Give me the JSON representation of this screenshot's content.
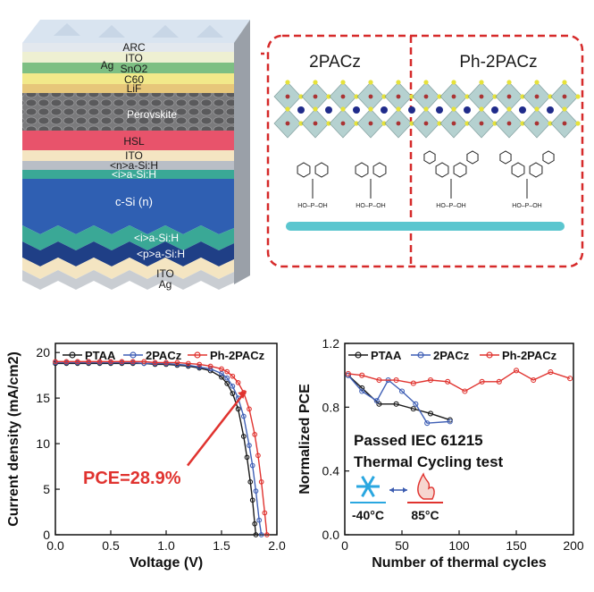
{
  "stack": {
    "layers": [
      "ARC",
      "ITO",
      "SnO2",
      "C60",
      "LiF",
      "Perovskite",
      "HSL",
      "ITO",
      "<n>a-Si:H",
      "<i>a-Si:H",
      "c-Si (n)",
      "<i>a-Si:H",
      "<p>a-Si:H",
      "ITO",
      "Ag"
    ],
    "top_left_label": "Ag",
    "colors": {
      "perovskite": "#6f6f70",
      "hsl": "#e8536b",
      "csi": "#2f5fb2",
      "green": "#3aa896",
      "ito": "#f4e5c2",
      "yellow": "#f2e98a"
    }
  },
  "molecules": {
    "left_label": "2PACz",
    "right_label": "Ph-2PACz",
    "group_label": "HO–P–OH",
    "border_color": "#d62a2a"
  },
  "chart_data": [
    {
      "type": "line",
      "xlabel": "Voltage (V)",
      "ylabel": "Current density (mA/cm2)",
      "xlim": [
        0,
        2.0
      ],
      "ylim": [
        0,
        21
      ],
      "xticks": [
        "0.0",
        "0.5",
        "1.0",
        "1.5",
        "2.0"
      ],
      "yticks": [
        "0",
        "5",
        "10",
        "15",
        "20"
      ],
      "legend_position": "top",
      "annotation": "PCE=28.9%",
      "series": [
        {
          "name": "PTAA",
          "color": "#1a1a1a",
          "x": [
            0,
            0.1,
            0.2,
            0.3,
            0.4,
            0.5,
            0.6,
            0.7,
            0.8,
            0.9,
            1.0,
            1.1,
            1.2,
            1.3,
            1.4,
            1.5,
            1.55,
            1.6,
            1.65,
            1.7,
            1.73,
            1.76,
            1.78,
            1.8,
            1.81
          ],
          "y": [
            18.8,
            18.8,
            18.8,
            18.8,
            18.8,
            18.8,
            18.8,
            18.8,
            18.8,
            18.7,
            18.7,
            18.6,
            18.5,
            18.3,
            18.0,
            17.3,
            16.6,
            15.5,
            13.8,
            10.8,
            8.5,
            5.8,
            3.8,
            1.2,
            0
          ]
        },
        {
          "name": "2PACz",
          "color": "#3f5fb5",
          "x": [
            0,
            0.1,
            0.2,
            0.3,
            0.4,
            0.5,
            0.6,
            0.7,
            0.8,
            0.9,
            1.0,
            1.1,
            1.2,
            1.3,
            1.4,
            1.5,
            1.55,
            1.6,
            1.65,
            1.7,
            1.75,
            1.78,
            1.81,
            1.84,
            1.86
          ],
          "y": [
            18.9,
            18.9,
            18.9,
            18.9,
            18.9,
            18.9,
            18.9,
            18.9,
            18.8,
            18.8,
            18.8,
            18.7,
            18.6,
            18.4,
            18.2,
            17.7,
            17.2,
            16.3,
            15.0,
            13.0,
            9.8,
            7.6,
            4.8,
            1.6,
            0
          ]
        },
        {
          "name": "Ph-2PACz",
          "color": "#e0332f",
          "x": [
            0,
            0.1,
            0.2,
            0.3,
            0.4,
            0.5,
            0.6,
            0.7,
            0.8,
            0.9,
            1.0,
            1.1,
            1.2,
            1.3,
            1.4,
            1.5,
            1.55,
            1.6,
            1.65,
            1.7,
            1.75,
            1.8,
            1.83,
            1.86,
            1.89,
            1.91
          ],
          "y": [
            19.0,
            19.0,
            19.0,
            19.0,
            19.0,
            19.0,
            19.0,
            19.0,
            19.0,
            18.9,
            18.9,
            18.9,
            18.8,
            18.7,
            18.5,
            18.2,
            17.9,
            17.4,
            16.7,
            15.6,
            13.8,
            11.0,
            8.7,
            5.8,
            2.4,
            0
          ]
        }
      ]
    },
    {
      "type": "line",
      "xlabel": "Number of thermal cycles",
      "ylabel": "Normalized PCE",
      "xlim": [
        0,
        200
      ],
      "ylim": [
        0,
        1.2
      ],
      "xticks": [
        "0",
        "50",
        "100",
        "150",
        "200"
      ],
      "yticks": [
        "0.0",
        "0.4",
        "0.8",
        "1.2"
      ],
      "legend_position": "top",
      "annotation_lines": [
        "Passed IEC 61215",
        "Thermal Cycling test"
      ],
      "cold_label": "-40°C",
      "hot_label": "85°C",
      "series": [
        {
          "name": "PTAA",
          "color": "#1a1a1a",
          "x": [
            3,
            15,
            30,
            45,
            60,
            75,
            92
          ],
          "y": [
            1.0,
            0.92,
            0.82,
            0.82,
            0.79,
            0.76,
            0.72
          ]
        },
        {
          "name": "2PACz",
          "color": "#3f5fb5",
          "x": [
            3,
            15,
            28,
            38,
            50,
            62,
            72,
            92
          ],
          "y": [
            1.0,
            0.9,
            0.84,
            0.97,
            0.9,
            0.82,
            0.7,
            0.71
          ]
        },
        {
          "name": "Ph-2PACz",
          "color": "#e0332f",
          "x": [
            3,
            15,
            30,
            45,
            60,
            75,
            90,
            105,
            120,
            135,
            150,
            165,
            180,
            197
          ],
          "y": [
            1.01,
            1.0,
            0.97,
            0.97,
            0.95,
            0.97,
            0.96,
            0.9,
            0.96,
            0.96,
            1.03,
            0.97,
            1.02,
            0.98
          ]
        }
      ]
    }
  ]
}
